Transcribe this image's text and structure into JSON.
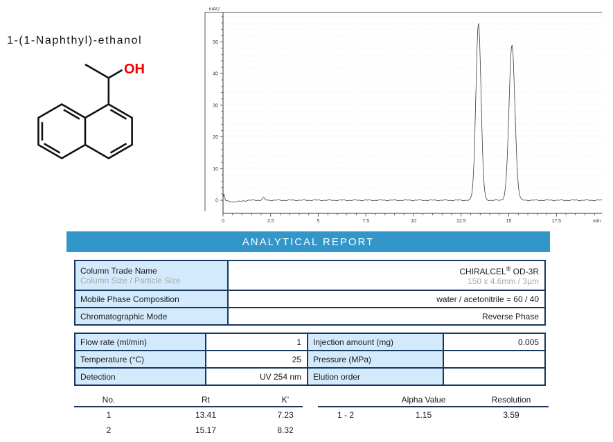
{
  "compound": {
    "name": "1-(1-Naphthyl)-ethanol",
    "hydroxyl_label": "OH"
  },
  "chart_data": {
    "type": "line",
    "title": "",
    "xlabel": "min",
    "ylabel": "mAU",
    "xlim": [
      0,
      19.9
    ],
    "ylim": [
      0,
      59
    ],
    "x_ticks": [
      0,
      2.5,
      5,
      7.5,
      10,
      12.5,
      15,
      17.5
    ],
    "y_ticks": [
      0,
      10,
      20,
      30,
      40,
      50
    ],
    "grid": "dotted-horizontal",
    "legend": "none",
    "series": [
      {
        "name": "UV 254 nm signal",
        "baseline_mAU": 0,
        "peaks": [
          {
            "rt_min": 13.41,
            "height_mAU": 56,
            "sigma_min": 0.135
          },
          {
            "rt_min": 15.17,
            "height_mAU": 49,
            "sigma_min": 0.155
          }
        ]
      }
    ]
  },
  "report": {
    "banner": "ANALYTICAL REPORT",
    "colors": {
      "banner_bg": "#3296c8",
      "cell_bg": "#d2eafb",
      "border": "#17375e",
      "subtext": "#a8a8a8",
      "accent_red": "#ee0000"
    },
    "column_table": {
      "row1": {
        "label": "Column Trade Name",
        "label_sub": "Column Size / Particle Size",
        "value_main": "CHIRALCEL",
        "value_reg": "®",
        "value_suffix": " OD-3R",
        "value_sub": "150 x 4.6mm / 3µm"
      },
      "row2": {
        "label": "Mobile Phase Composition",
        "value": "water / acetonitrile = 60 / 40"
      },
      "row3": {
        "label": "Chromatographic Mode",
        "value": "Reverse Phase"
      }
    },
    "param_table": {
      "rows": [
        [
          "Flow rate (ml/min)",
          "1",
          "Injection amount (mg)",
          "0.005"
        ],
        [
          "Temperature (°C)",
          "25",
          "Pressure (MPa)",
          ""
        ],
        [
          "Detection",
          "UV 254 nm",
          "Elution order",
          ""
        ]
      ]
    },
    "peak_table": {
      "headers": [
        "No.",
        "Rt",
        "K’"
      ],
      "rows": [
        [
          "1",
          "13.41",
          "7.23"
        ],
        [
          "2",
          "15.17",
          "8.32"
        ]
      ]
    },
    "separation_table": {
      "headers": [
        "",
        "Alpha Value",
        "Resolution"
      ],
      "rows": [
        [
          "1 - 2",
          "1.15",
          "3.59"
        ]
      ]
    }
  }
}
